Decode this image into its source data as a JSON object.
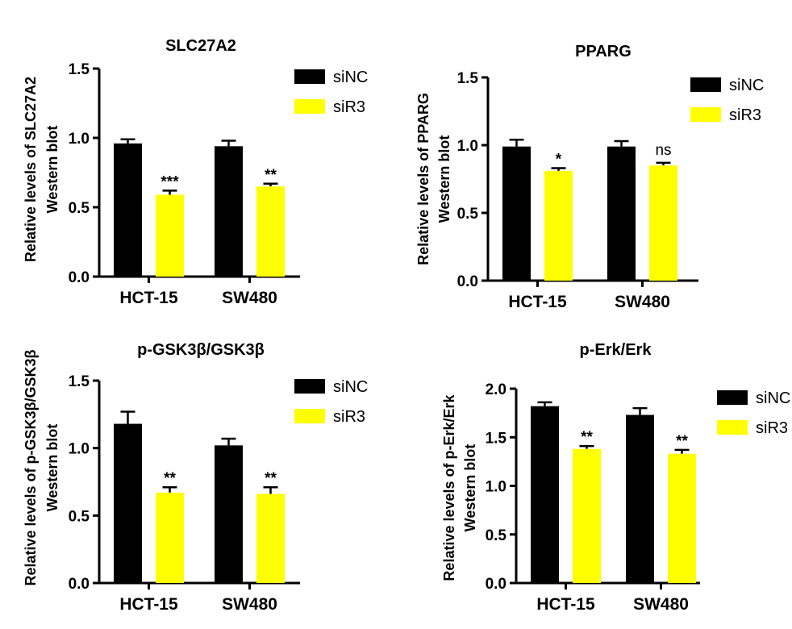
{
  "legend_labels": [
    "siNC",
    "siR3"
  ],
  "colors": {
    "siNC": "#000000",
    "siR3": "#ffff00"
  },
  "chart_data": [
    {
      "type": "bar",
      "title": "SLC27A2",
      "ylabel": [
        "Relative levels of SLC27A2",
        "Western blot"
      ],
      "categories": [
        "HCT-15",
        "SW480"
      ],
      "ylim": [
        0,
        1.5
      ],
      "yticks": [
        "0.0",
        "0.5",
        "1.0",
        "1.5"
      ],
      "legend": "top-right",
      "series": [
        {
          "name": "siNC",
          "values": [
            0.96,
            0.94
          ],
          "errors": [
            0.03,
            0.04
          ]
        },
        {
          "name": "siR3",
          "values": [
            0.59,
            0.65
          ],
          "errors": [
            0.03,
            0.02
          ]
        }
      ],
      "annotations": [
        "***",
        "**"
      ]
    },
    {
      "type": "bar",
      "title": "PPARG",
      "ylabel": [
        "Relative levels of PPARG",
        "Western blot"
      ],
      "categories": [
        "HCT-15",
        "SW480"
      ],
      "ylim": [
        0,
        1.5
      ],
      "yticks": [
        "0.0",
        "0.5",
        "1.0",
        "1.5"
      ],
      "legend": "top-right",
      "series": [
        {
          "name": "siNC",
          "values": [
            0.99,
            0.99
          ],
          "errors": [
            0.05,
            0.04
          ]
        },
        {
          "name": "siR3",
          "values": [
            0.81,
            0.85
          ],
          "errors": [
            0.02,
            0.02
          ]
        }
      ],
      "annotations": [
        "*",
        "ns"
      ]
    },
    {
      "type": "bar",
      "title": "p-GSK3β/GSK3β",
      "ylabel": [
        "Relative levels of p-GSK3β/GSK3β",
        "Western blot"
      ],
      "categories": [
        "HCT-15",
        "SW480"
      ],
      "ylim": [
        0,
        1.5
      ],
      "yticks": [
        "0.0",
        "0.5",
        "1.0",
        "1.5"
      ],
      "legend": "top-right",
      "series": [
        {
          "name": "siNC",
          "values": [
            1.18,
            1.02
          ],
          "errors": [
            0.09,
            0.05
          ]
        },
        {
          "name": "siR3",
          "values": [
            0.67,
            0.66
          ],
          "errors": [
            0.04,
            0.05
          ]
        }
      ],
      "annotations": [
        "**",
        "**"
      ]
    },
    {
      "type": "bar",
      "title": "p-Erk/Erk",
      "ylabel": [
        "Relative levels of p-Erk/Erk",
        "Western blot"
      ],
      "categories": [
        "HCT-15",
        "SW480"
      ],
      "ylim": [
        0,
        2.0
      ],
      "yticks": [
        "0.0",
        "0.5",
        "1.0",
        "1.5",
        "2.0"
      ],
      "legend": "top-right",
      "series": [
        {
          "name": "siNC",
          "values": [
            1.82,
            1.73
          ],
          "errors": [
            0.04,
            0.07
          ]
        },
        {
          "name": "siR3",
          "values": [
            1.38,
            1.33
          ],
          "errors": [
            0.03,
            0.04
          ]
        }
      ],
      "annotations": [
        "**",
        "**"
      ]
    }
  ]
}
